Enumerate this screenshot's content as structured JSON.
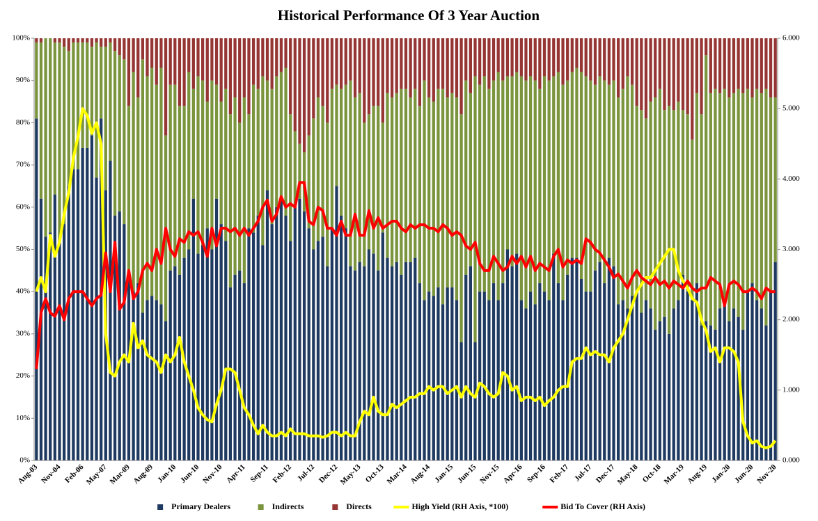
{
  "chart_data": {
    "type": "bar",
    "stacked": true,
    "title": "Historical Performance Of 3 Year Auction",
    "categories": [
      "Aug-03",
      null,
      null,
      null,
      null,
      "Nov-04",
      null,
      null,
      null,
      null,
      "Feb-06",
      null,
      null,
      null,
      null,
      "May-07",
      null,
      null,
      null,
      null,
      "Mar-09",
      null,
      null,
      null,
      null,
      "Aug-09",
      null,
      null,
      null,
      null,
      "Jan-10",
      null,
      null,
      null,
      null,
      "Jun-10",
      null,
      null,
      null,
      null,
      "Nov-10",
      null,
      null,
      null,
      null,
      "Apr-11",
      null,
      null,
      null,
      null,
      "Sep-11",
      null,
      null,
      null,
      null,
      "Feb-12",
      null,
      null,
      null,
      null,
      "Jul-12",
      null,
      null,
      null,
      null,
      "Dec-12",
      null,
      null,
      null,
      null,
      "May-13",
      null,
      null,
      null,
      null,
      "Oct-13",
      null,
      null,
      null,
      null,
      "Mar-14",
      null,
      null,
      null,
      null,
      "Aug-14",
      null,
      null,
      null,
      null,
      "Jan-15",
      null,
      null,
      null,
      null,
      "Jun-15",
      null,
      null,
      null,
      null,
      "Nov-15",
      null,
      null,
      null,
      null,
      "Apr-16",
      null,
      null,
      null,
      null,
      "Sep-16",
      null,
      null,
      null,
      null,
      "Feb-17",
      null,
      null,
      null,
      null,
      "Jul-17",
      null,
      null,
      null,
      null,
      "Dec-17",
      null,
      null,
      null,
      null,
      "May-18",
      null,
      null,
      null,
      null,
      "Oct-18",
      null,
      null,
      null,
      null,
      "Mar-19",
      null,
      null,
      null,
      null,
      "Aug-19",
      null,
      null,
      null,
      null,
      "Jan-20",
      null,
      null,
      null,
      null,
      "Jun-20",
      null,
      null,
      null,
      null,
      "Nov-20"
    ],
    "ylim": [
      0,
      100
    ],
    "yticks": [
      {
        "value": 0,
        "label": "0%"
      },
      {
        "value": 10,
        "label": "10%"
      },
      {
        "value": 20,
        "label": "20%"
      },
      {
        "value": 30,
        "label": "30%"
      },
      {
        "value": 40,
        "label": "40%"
      },
      {
        "value": 50,
        "label": "50%"
      },
      {
        "value": 60,
        "label": "60%"
      },
      {
        "value": 70,
        "label": "70%"
      },
      {
        "value": 80,
        "label": "80%"
      },
      {
        "value": 90,
        "label": "90%"
      },
      {
        "value": 100,
        "label": "100%"
      }
    ],
    "y2lim": [
      0,
      6
    ],
    "y2ticks": [
      {
        "value": 0,
        "label": "0.000"
      },
      {
        "value": 1,
        "label": "1.000"
      },
      {
        "value": 2,
        "label": "2.000"
      },
      {
        "value": 3,
        "label": "3.000"
      },
      {
        "value": 4,
        "label": "4.000"
      },
      {
        "value": 5,
        "label": "5.000"
      },
      {
        "value": 6,
        "label": "6.000"
      }
    ],
    "legend": "bottom",
    "series": [
      {
        "name": "Primary Dealers",
        "type": "bar",
        "color": "#1f3a60",
        "values": [
          81,
          62,
          53,
          54,
          63,
          52,
          56,
          65,
          69,
          69,
          74,
          74,
          77,
          67,
          81,
          64,
          71,
          58,
          59,
          56,
          45,
          40,
          42,
          35,
          38,
          39,
          38,
          37,
          33,
          45,
          46,
          44,
          48,
          50,
          62,
          49,
          51,
          55,
          50,
          62,
          56,
          52,
          41,
          44,
          45,
          42,
          55,
          54,
          58,
          51,
          64,
          56,
          60,
          62,
          58,
          52,
          60,
          62,
          59,
          55,
          50,
          52,
          53,
          46,
          55,
          65,
          58,
          55,
          46,
          45,
          47,
          46,
          50,
          49,
          45,
          54,
          48,
          46,
          47,
          44,
          47,
          47,
          48,
          42,
          38,
          40,
          39,
          41,
          37,
          41,
          41,
          38,
          28,
          44,
          46,
          28,
          40,
          40,
          38,
          42,
          38,
          42,
          50,
          46,
          49,
          38,
          36,
          40,
          37,
          42,
          40,
          38,
          49,
          42,
          38,
          44,
          48,
          48,
          43,
          40,
          40,
          45,
          47,
          42,
          48,
          46,
          37,
          38,
          36,
          39,
          40,
          35,
          38,
          36,
          31,
          33,
          34,
          30,
          36,
          38,
          44,
          40,
          38,
          42,
          32,
          33,
          32,
          31,
          36,
          37,
          33,
          36,
          34,
          31,
          40,
          42,
          38,
          36,
          32,
          40,
          47
        ]
      },
      {
        "name": "Indirects",
        "type": "bar",
        "color": "#7a953d",
        "values": [
          18,
          37,
          47,
          46,
          36,
          47,
          42,
          32,
          30,
          30,
          25,
          25,
          21,
          32,
          17,
          34,
          28,
          39,
          37,
          39,
          39,
          52,
          44,
          60,
          53,
          54,
          51,
          56,
          44,
          44,
          43,
          40,
          36,
          42,
          26,
          42,
          39,
          30,
          40,
          27,
          29,
          36,
          41,
          42,
          35,
          44,
          27,
          35,
          30,
          40,
          26,
          32,
          31,
          30,
          35,
          30,
          18,
          13,
          14,
          22,
          31,
          34,
          31,
          34,
          33,
          24,
          30,
          34,
          44,
          41,
          40,
          34,
          32,
          35,
          39,
          26,
          39,
          40,
          40,
          44,
          41,
          39,
          40,
          42,
          52,
          46,
          46,
          47,
          51,
          45,
          46,
          48,
          54,
          46,
          41,
          63,
          49,
          51,
          50,
          48,
          54,
          48,
          41,
          45,
          43,
          53,
          54,
          51,
          53,
          46,
          51,
          52,
          42,
          50,
          51,
          46,
          44,
          45,
          49,
          51,
          50,
          44,
          44,
          48,
          41,
          44,
          49,
          50,
          55,
          50,
          44,
          48,
          43,
          49,
          55,
          55,
          49,
          54,
          47,
          47,
          39,
          42,
          38,
          45,
          50,
          63,
          55,
          57,
          51,
          51,
          53,
          51,
          54,
          56,
          48,
          44,
          50,
          51,
          56,
          46,
          39
        ]
      },
      {
        "name": "Directs",
        "type": "bar",
        "color": "#963634",
        "values": [
          1,
          1,
          0,
          0,
          1,
          1,
          2,
          3,
          1,
          1,
          1,
          1,
          2,
          1,
          2,
          2,
          1,
          3,
          4,
          5,
          16,
          8,
          14,
          5,
          9,
          7,
          11,
          7,
          23,
          11,
          11,
          16,
          16,
          8,
          12,
          9,
          10,
          15,
          10,
          11,
          15,
          12,
          18,
          14,
          20,
          14,
          18,
          11,
          12,
          9,
          10,
          12,
          9,
          8,
          7,
          18,
          22,
          25,
          27,
          23,
          19,
          14,
          16,
          20,
          12,
          11,
          12,
          11,
          10,
          14,
          13,
          20,
          18,
          16,
          16,
          20,
          13,
          14,
          13,
          12,
          12,
          14,
          12,
          16,
          10,
          14,
          15,
          12,
          12,
          14,
          13,
          14,
          18,
          10,
          13,
          9,
          11,
          9,
          12,
          10,
          8,
          10,
          9,
          9,
          8,
          9,
          10,
          9,
          10,
          12,
          9,
          10,
          9,
          8,
          11,
          10,
          8,
          7,
          8,
          9,
          10,
          11,
          9,
          10,
          11,
          10,
          14,
          12,
          9,
          11,
          16,
          17,
          19,
          15,
          14,
          12,
          17,
          16,
          17,
          15,
          17,
          18,
          24,
          13,
          18,
          4,
          13,
          12,
          13,
          12,
          14,
          13,
          12,
          13,
          12,
          14,
          12,
          13,
          12,
          14,
          14
        ]
      },
      {
        "name": "High Yield (RH Axis, *100)",
        "type": "line",
        "axis": "y2",
        "color": "#ffff00",
        "values": [
          2.4,
          2.6,
          2.4,
          3.2,
          2.9,
          3.1,
          3.5,
          3.8,
          4.3,
          4.6,
          5.0,
          4.9,
          4.65,
          4.8,
          4.5,
          1.8,
          1.25,
          1.2,
          1.4,
          1.5,
          1.4,
          1.95,
          1.6,
          1.7,
          1.5,
          1.45,
          1.4,
          1.25,
          1.5,
          1.4,
          1.5,
          1.75,
          1.4,
          1.2,
          1.0,
          0.75,
          0.65,
          0.58,
          0.55,
          0.8,
          1.0,
          1.3,
          1.3,
          1.25,
          1.0,
          0.75,
          0.65,
          0.5,
          0.38,
          0.5,
          0.4,
          0.35,
          0.35,
          0.4,
          0.35,
          0.45,
          0.38,
          0.38,
          0.38,
          0.35,
          0.35,
          0.35,
          0.33,
          0.35,
          0.4,
          0.4,
          0.35,
          0.4,
          0.35,
          0.35,
          0.55,
          0.7,
          0.65,
          0.9,
          0.7,
          0.65,
          0.65,
          0.8,
          0.75,
          0.8,
          0.85,
          0.9,
          0.9,
          0.95,
          0.95,
          1.05,
          1.0,
          1.05,
          1.05,
          0.95,
          1.0,
          1.05,
          0.9,
          1.05,
          0.95,
          0.9,
          1.1,
          1.05,
          0.95,
          0.9,
          0.95,
          1.25,
          1.2,
          1.0,
          1.05,
          0.85,
          0.9,
          0.9,
          0.85,
          0.9,
          0.78,
          0.85,
          0.9,
          1.0,
          1.05,
          1.05,
          1.4,
          1.45,
          1.45,
          1.6,
          1.5,
          1.55,
          1.5,
          1.5,
          1.4,
          1.6,
          1.7,
          1.8,
          2.0,
          2.2,
          2.4,
          2.5,
          2.6,
          2.6,
          2.7,
          2.8,
          2.9,
          3.0,
          3.0,
          2.7,
          2.55,
          2.45,
          2.3,
          2.25,
          2.0,
          1.85,
          1.55,
          1.6,
          1.4,
          1.6,
          1.6,
          1.55,
          1.4,
          0.55,
          0.35,
          0.25,
          0.28,
          0.2,
          0.18,
          0.2,
          0.28
        ]
      },
      {
        "name": "Bid To Cover (RH Axis)",
        "type": "line",
        "axis": "y2",
        "color": "#ff0000",
        "values": [
          1.3,
          2.1,
          2.3,
          2.1,
          2.05,
          2.2,
          2.0,
          2.3,
          2.4,
          2.4,
          2.4,
          2.3,
          2.2,
          2.3,
          2.35,
          2.95,
          2.4,
          3.1,
          2.15,
          2.25,
          2.7,
          2.3,
          2.4,
          2.7,
          2.8,
          2.7,
          3.0,
          2.8,
          3.3,
          3.0,
          2.9,
          3.15,
          3.1,
          3.25,
          3.2,
          3.25,
          3.1,
          2.9,
          3.3,
          3.05,
          3.3,
          3.3,
          3.25,
          3.3,
          3.2,
          3.3,
          3.2,
          3.3,
          3.4,
          3.6,
          3.7,
          3.4,
          3.5,
          3.75,
          3.6,
          3.65,
          3.6,
          3.95,
          3.95,
          3.4,
          3.35,
          3.6,
          3.55,
          3.3,
          3.3,
          3.2,
          3.4,
          3.2,
          3.2,
          3.5,
          3.2,
          3.2,
          3.55,
          3.3,
          3.45,
          3.3,
          3.35,
          3.4,
          3.4,
          3.3,
          3.25,
          3.35,
          3.3,
          3.35,
          3.35,
          3.3,
          3.3,
          3.25,
          3.35,
          3.3,
          3.2,
          3.25,
          3.2,
          3.05,
          3.0,
          3.1,
          2.8,
          2.7,
          2.7,
          2.9,
          2.8,
          2.7,
          2.75,
          2.9,
          2.8,
          2.9,
          2.75,
          2.9,
          2.7,
          2.8,
          2.75,
          2.7,
          2.9,
          3.0,
          2.75,
          2.85,
          2.8,
          2.85,
          2.8,
          3.15,
          3.1,
          3.0,
          2.95,
          2.85,
          2.75,
          2.6,
          2.65,
          2.55,
          2.45,
          2.6,
          2.7,
          2.6,
          2.55,
          2.5,
          2.6,
          2.5,
          2.55,
          2.45,
          2.55,
          2.5,
          2.45,
          2.55,
          2.45,
          2.4,
          2.45,
          2.45,
          2.6,
          2.55,
          2.5,
          2.2,
          2.5,
          2.55,
          2.5,
          2.4,
          2.4,
          2.45,
          2.4,
          2.3,
          2.45,
          2.4,
          2.4
        ]
      }
    ]
  }
}
